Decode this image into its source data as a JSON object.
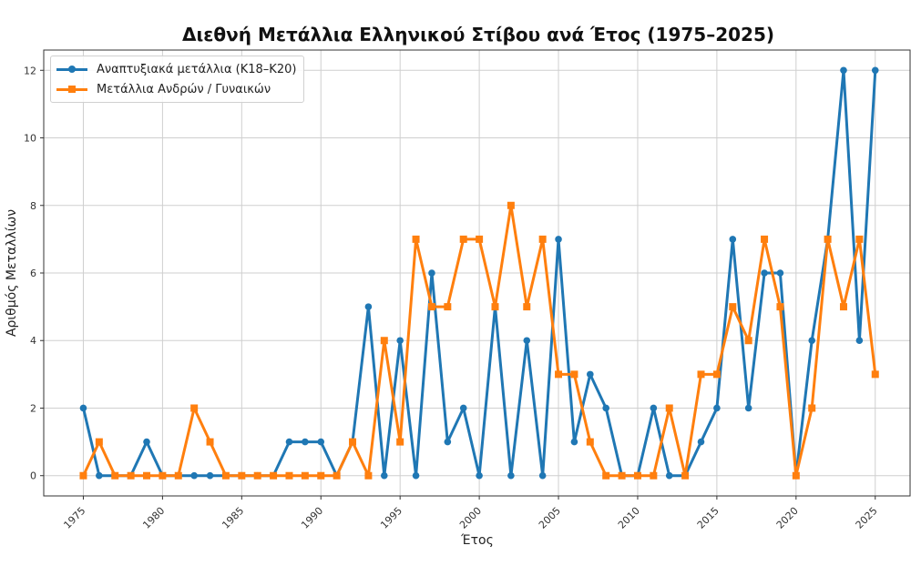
{
  "chart_data": {
    "type": "line",
    "title": "Διεθνή Μετάλλια Ελληνικού Στίβου ανά Έτος (1975–2025)",
    "xlabel": "Έτος",
    "ylabel": "Αριθμός Μεταλλίων",
    "x": [
      1975,
      1976,
      1977,
      1978,
      1979,
      1980,
      1981,
      1982,
      1983,
      1984,
      1985,
      1986,
      1987,
      1988,
      1989,
      1990,
      1991,
      1992,
      1993,
      1994,
      1995,
      1996,
      1997,
      1998,
      1999,
      2000,
      2001,
      2002,
      2003,
      2004,
      2005,
      2006,
      2007,
      2008,
      2009,
      2010,
      2011,
      2012,
      2013,
      2014,
      2015,
      2016,
      2017,
      2018,
      2019,
      2020,
      2021,
      2022,
      2023,
      2024,
      2025
    ],
    "series": [
      {
        "name": "Αναπτυξιακά μετάλλια (Κ18–Κ20)",
        "color": "#1f77b4",
        "marker": "circle",
        "values": [
          2,
          0,
          0,
          0,
          1,
          0,
          0,
          0,
          0,
          0,
          0,
          0,
          0,
          1,
          1,
          1,
          0,
          1,
          5,
          0,
          4,
          0,
          6,
          1,
          2,
          0,
          5,
          0,
          4,
          0,
          7,
          1,
          3,
          2,
          0,
          0,
          2,
          0,
          0,
          1,
          2,
          7,
          2,
          6,
          6,
          0,
          4,
          7,
          12,
          4,
          12
        ]
      },
      {
        "name": "Μετάλλια Ανδρών / Γυναικών",
        "color": "#ff7f0e",
        "marker": "square",
        "values": [
          0,
          1,
          0,
          0,
          0,
          0,
          0,
          2,
          1,
          0,
          0,
          0,
          0,
          0,
          0,
          0,
          0,
          1,
          0,
          4,
          1,
          7,
          5,
          5,
          7,
          7,
          5,
          8,
          5,
          7,
          3,
          3,
          1,
          0,
          0,
          0,
          0,
          2,
          0,
          3,
          3,
          5,
          4,
          7,
          5,
          0,
          2,
          7,
          5,
          7,
          3
        ]
      }
    ],
    "x_ticks": [
      1975,
      1980,
      1985,
      1990,
      1995,
      2000,
      2005,
      2010,
      2015,
      2020,
      2025
    ],
    "y_ticks": [
      0,
      2,
      4,
      6,
      8,
      10,
      12
    ],
    "xlim": [
      1972.5,
      2027.2
    ],
    "ylim": [
      -0.6,
      12.6
    ],
    "grid": true,
    "legend_position": "upper left"
  }
}
